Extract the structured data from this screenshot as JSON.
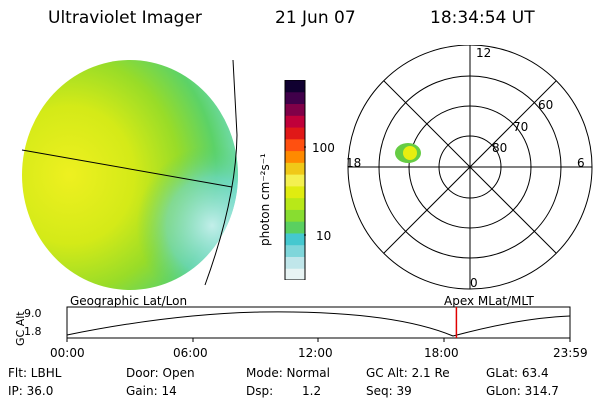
{
  "header": {
    "title": "Ultraviolet Imager",
    "date": "21 Jun 07",
    "time": "18:34:54 UT"
  },
  "colorbar": {
    "unit_label": "photon cm⁻²s⁻¹",
    "tick_100": "100",
    "tick_10": "10",
    "colors": [
      "#e8f4f4",
      "#c0e6ea",
      "#7fd6da",
      "#45c8cf",
      "#5ad060",
      "#88dd30",
      "#b8e818",
      "#e0ec10",
      "#f4f050",
      "#f0c818",
      "#ff8a00",
      "#ff5010",
      "#e01818",
      "#c0003a",
      "#800048",
      "#40004a",
      "#100030"
    ]
  },
  "polar": {
    "mlt_labels": {
      "top": "12",
      "left": "18",
      "right": "6",
      "bottom": "0"
    },
    "lat_labels": [
      "60",
      "70",
      "80"
    ]
  },
  "timeline": {
    "left_caption": "Geographic Lat/Lon",
    "right_caption": "Apex MLat/MLT",
    "y_axis_title": "GC Alt",
    "y_max": "9.0",
    "y_min": "1.8",
    "ticks": [
      "00:00",
      "06:00",
      "12:00",
      "18:00",
      "23:59"
    ],
    "current_marker_hour": 18.58,
    "marker_color": "#e00000"
  },
  "footer": {
    "filter": "Flt: LBHL",
    "ip": "IP: 36.0",
    "door": "Door: Open",
    "gain": "Gain: 14",
    "mode": "Mode: Normal",
    "dsp_label": "Dsp:",
    "dsp_value": "1.2",
    "gc_alt": "GC Alt: 2.1 Re",
    "seq": "Seq: 39",
    "glat": "GLat:  63.4",
    "glon": "GLon: 314.7"
  }
}
